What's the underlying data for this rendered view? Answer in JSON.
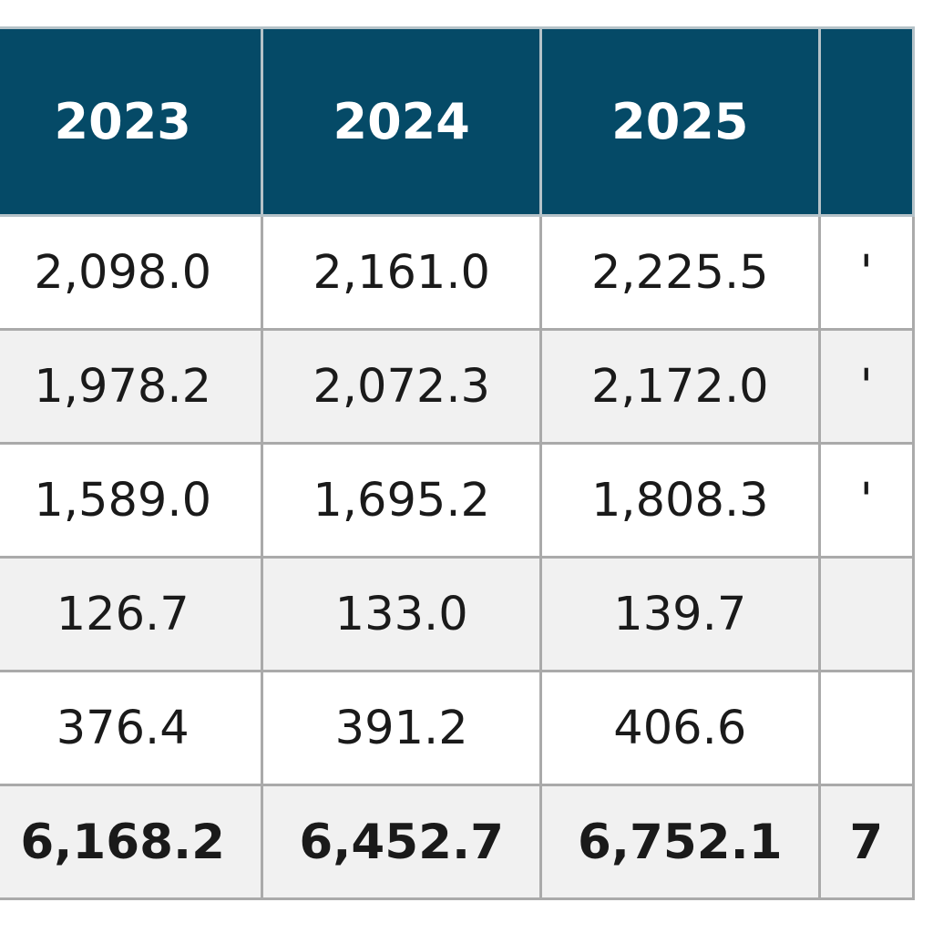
{
  "table": {
    "headers": [
      "2023",
      "2024",
      "2025",
      ""
    ],
    "rows": [
      [
        "2,098.0",
        "2,161.0",
        "2,225.5",
        "'"
      ],
      [
        "1,978.2",
        "2,072.3",
        "2,172.0",
        "'"
      ],
      [
        "1,589.0",
        "1,695.2",
        "1,808.3",
        "'"
      ],
      [
        "126.7",
        "133.0",
        "139.7",
        ""
      ],
      [
        "376.4",
        "391.2",
        "406.6",
        ""
      ]
    ],
    "total": [
      "6,168.2",
      "6,452.7",
      "6,752.1",
      "7"
    ]
  },
  "colors": {
    "header_bg": "#054a67",
    "header_text": "#ffffff",
    "border": "#aaaaaa",
    "row_alt_bg": "#f1f1f1"
  }
}
